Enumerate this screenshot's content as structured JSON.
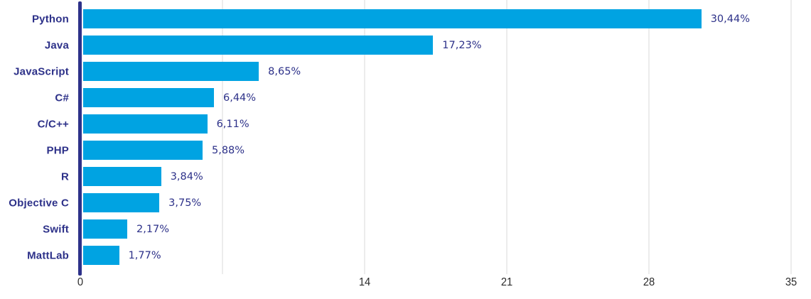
{
  "chart_data": {
    "type": "bar",
    "orientation": "horizontal",
    "title": "",
    "categories": [
      "Python",
      "Java",
      "JavaScript",
      "C#",
      "C/C++",
      "PHP",
      "R",
      "Objective C",
      "Swift",
      "MattLab"
    ],
    "values": [
      30.44,
      17.23,
      8.65,
      6.44,
      6.11,
      5.88,
      3.84,
      3.75,
      2.17,
      1.77
    ],
    "value_labels": [
      "30,44%",
      "17,23%",
      "8,65%",
      "6,44%",
      "6,11%",
      "5,88%",
      "3,84%",
      "3,75%",
      "2,17%",
      "1,77%"
    ],
    "xlabel": "",
    "ylabel": "",
    "xlim": [
      0,
      35
    ],
    "x_ticks": [
      0,
      7,
      14,
      21,
      28,
      35
    ],
    "x_tick_labels": [
      "0",
      "",
      "14",
      "21",
      "28",
      "35"
    ],
    "grid": true,
    "legend": false,
    "colors": {
      "bar": "#00A3E2",
      "category_label": "#2D3189",
      "value_label": "#2D3189",
      "axis_line": "#2D3189",
      "gridline": "#ECECEC",
      "tick_label": "#2B2B2B",
      "background": "#FFFFFF"
    }
  }
}
